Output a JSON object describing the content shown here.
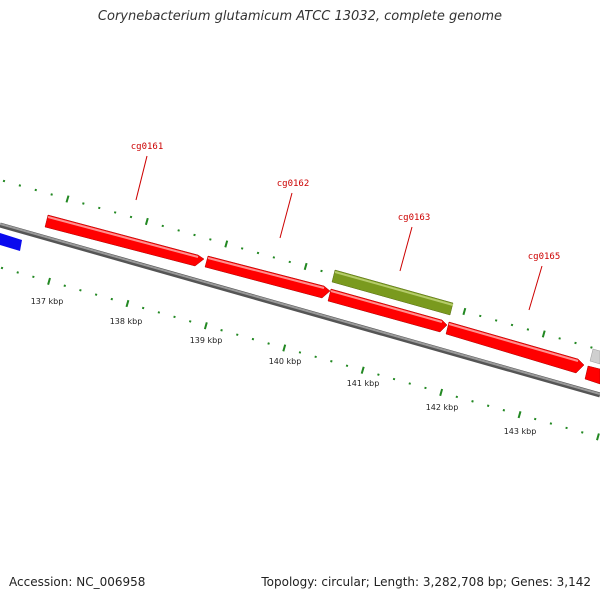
{
  "title": "Corynebacterium glutamicum ATCC 13032, complete genome",
  "footer": {
    "accession_label": "Accession:",
    "accession": "NC_006958",
    "info": "Topology: circular; Length: 3,282,708 bp; Genes: 3,142"
  },
  "colors": {
    "backbone": "#888888",
    "tick": "#228822",
    "gene_red": "#ff0000",
    "gene_green": "#7a9a1e",
    "gene_blue": "#0000ee",
    "gene_gray": "#cccccc",
    "label": "#cc0000"
  },
  "tick_labels": [
    "137 kbp",
    "138 kbp",
    "139 kbp",
    "140 kbp",
    "141 kbp",
    "142 kbp",
    "143 kbp"
  ],
  "gene_labels": [
    "cg0161",
    "cg0162",
    "cg0163",
    "cg0165"
  ]
}
